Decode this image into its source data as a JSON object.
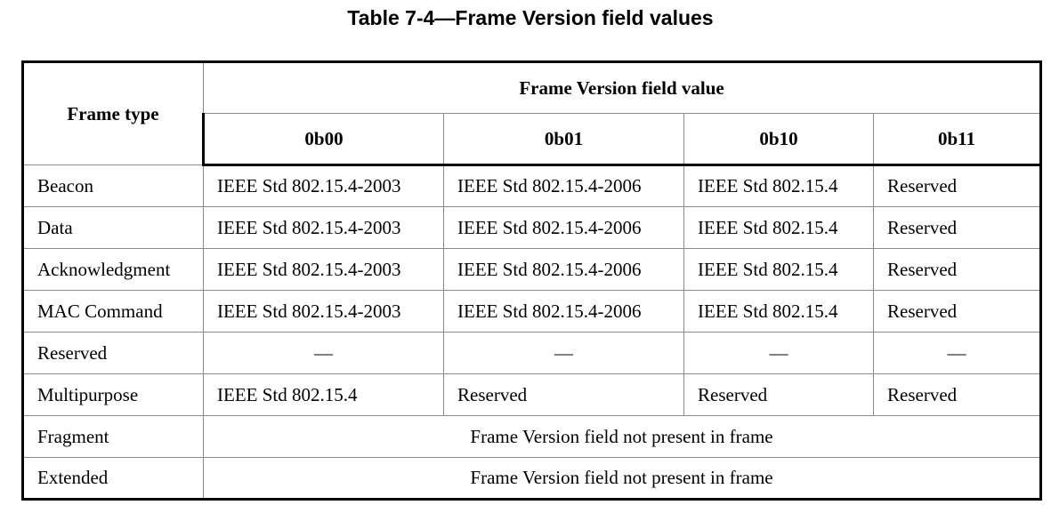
{
  "caption": "Table 7-4—Frame Version field values",
  "header": {
    "frame_type": "Frame type",
    "group": "Frame Version field value",
    "columns": [
      "0b00",
      "0b01",
      "0b10",
      "0b11"
    ]
  },
  "rows": [
    {
      "type": "Beacon",
      "cells": [
        "IEEE Std 802.15.4-2003",
        "IEEE Std 802.15.4-2006",
        "IEEE Std 802.15.4",
        "Reserved"
      ]
    },
    {
      "type": "Data",
      "cells": [
        "IEEE Std 802.15.4-2003",
        "IEEE Std 802.15.4-2006",
        "IEEE Std 802.15.4",
        "Reserved"
      ]
    },
    {
      "type": "Acknowledgment",
      "cells": [
        "IEEE Std 802.15.4-2003",
        "IEEE Std 802.15.4-2006",
        "IEEE Std 802.15.4",
        "Reserved"
      ]
    },
    {
      "type": "MAC Command",
      "cells": [
        "IEEE Std 802.15.4-2003",
        "IEEE Std 802.15.4-2006",
        "IEEE Std 802.15.4",
        "Reserved"
      ]
    },
    {
      "type": "Reserved",
      "cells": [
        "—",
        "—",
        "—",
        "—"
      ]
    },
    {
      "type": "Multipurpose",
      "cells": [
        "IEEE Std 802.15.4",
        "Reserved",
        "Reserved",
        "Reserved"
      ]
    },
    {
      "type": "Fragment",
      "merged": "Frame Version field not present in frame"
    },
    {
      "type": "Extended",
      "merged": "Frame Version field not present in frame"
    }
  ]
}
